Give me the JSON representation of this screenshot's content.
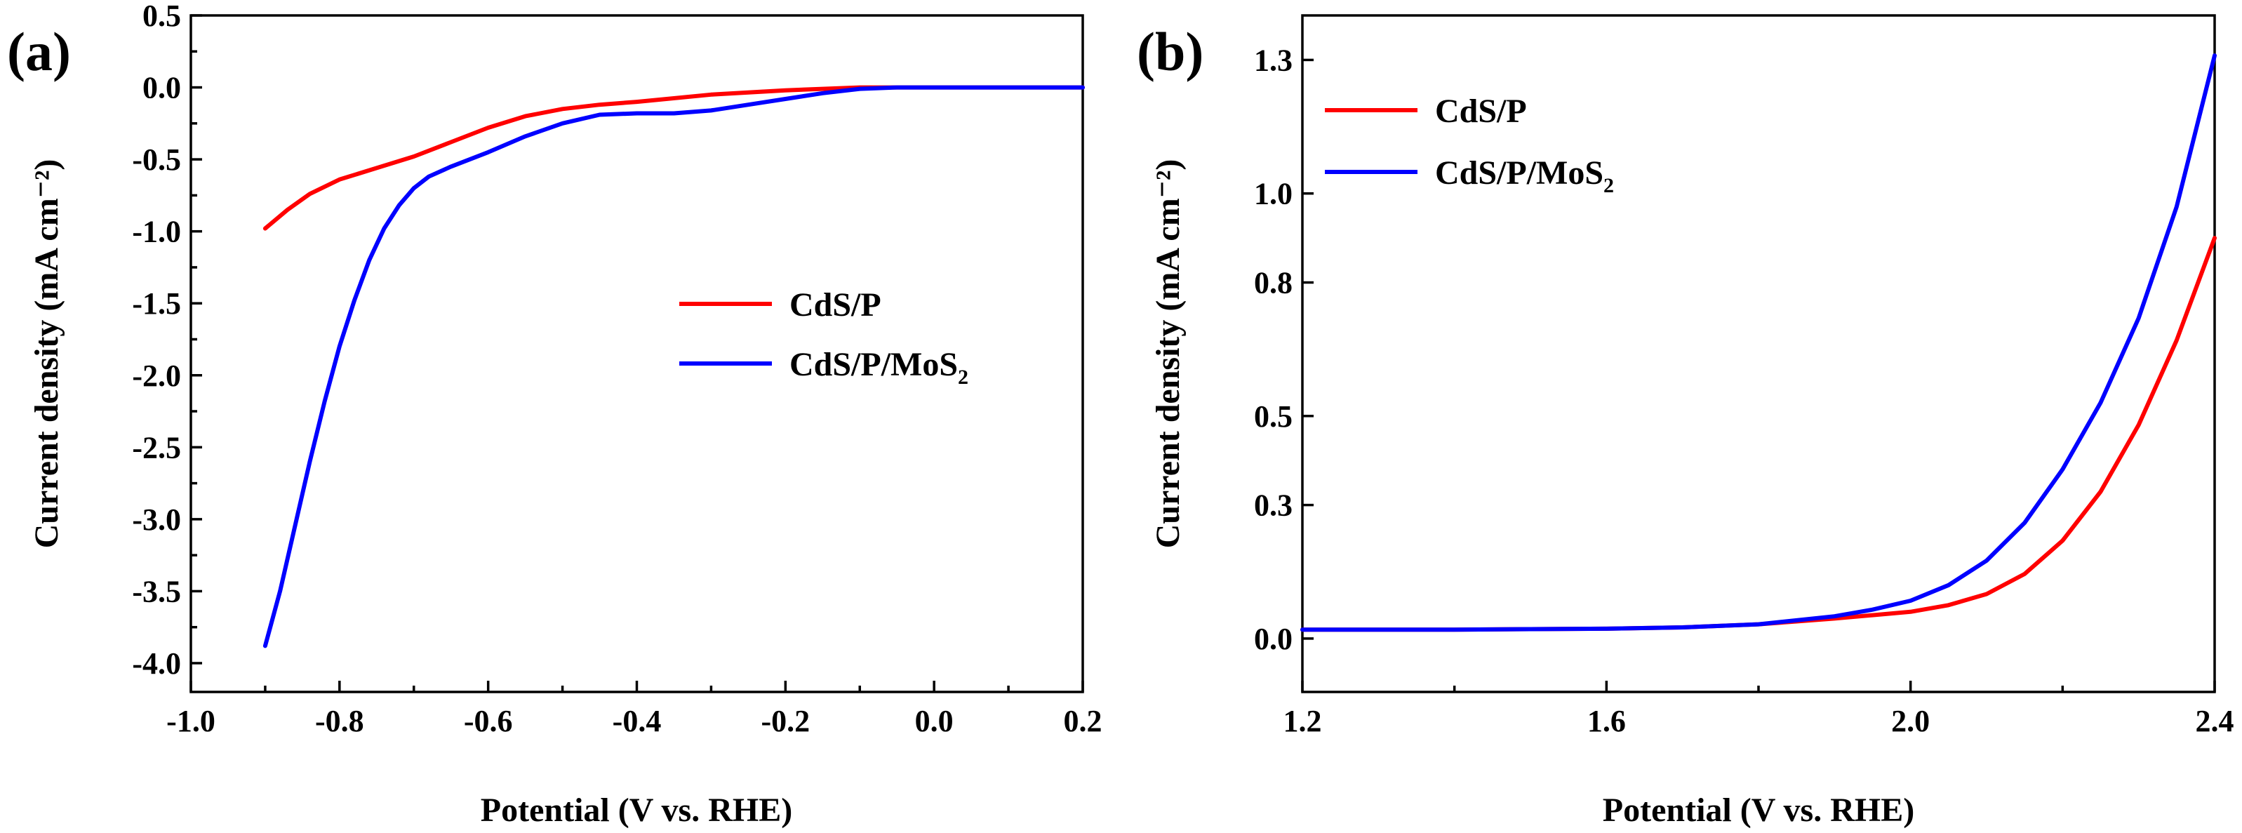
{
  "chart_data": [
    {
      "type": "line",
      "panel_label": "(a)",
      "xlabel": "Potential (V vs. RHE)",
      "ylabel": "Current density (mA cm⁻²)",
      "xlim": [
        -1.0,
        0.2
      ],
      "ylim": [
        -4.2,
        0.5
      ],
      "x_ticks": [
        -1.0,
        -0.8,
        -0.6,
        -0.4,
        -0.2,
        0.0,
        0.2
      ],
      "x_tick_labels": [
        "-1.0",
        "-0.8",
        "-0.6",
        "-0.4",
        "-0.2",
        "0.0",
        "0.2"
      ],
      "y_ticks": [
        0.5,
        0.0,
        -0.5,
        -1.0,
        -1.5,
        -2.0,
        -2.5,
        -3.0,
        -3.5,
        -4.0
      ],
      "y_tick_labels": [
        "0.5",
        "0.0",
        "-0.5",
        "-1.0",
        "-1.5",
        "-2.0",
        "-2.5",
        "-3.0",
        "-3.5",
        "-4.0"
      ],
      "legend_position": "center-right",
      "series": [
        {
          "name": "CdS/P",
          "legend_text": "CdS/P",
          "color": "#ff0000",
          "x": [
            -0.9,
            -0.87,
            -0.84,
            -0.8,
            -0.75,
            -0.7,
            -0.65,
            -0.6,
            -0.55,
            -0.5,
            -0.45,
            -0.4,
            -0.3,
            -0.2,
            -0.1,
            0.0,
            0.2
          ],
          "y": [
            -0.98,
            -0.85,
            -0.74,
            -0.64,
            -0.56,
            -0.48,
            -0.38,
            -0.28,
            -0.2,
            -0.15,
            -0.12,
            -0.1,
            -0.05,
            -0.02,
            0.0,
            0.0,
            0.0
          ]
        },
        {
          "name": "CdS/P/MoS2",
          "legend_text": "CdS/P/MoS",
          "legend_subscript": "2",
          "color": "#0000ff",
          "x": [
            -0.9,
            -0.88,
            -0.86,
            -0.84,
            -0.82,
            -0.8,
            -0.78,
            -0.76,
            -0.74,
            -0.72,
            -0.7,
            -0.68,
            -0.65,
            -0.6,
            -0.55,
            -0.5,
            -0.45,
            -0.4,
            -0.35,
            -0.3,
            -0.25,
            -0.2,
            -0.15,
            -0.1,
            -0.05,
            0.0,
            0.2
          ],
          "y": [
            -3.88,
            -3.5,
            -3.05,
            -2.6,
            -2.18,
            -1.8,
            -1.48,
            -1.2,
            -0.98,
            -0.82,
            -0.7,
            -0.62,
            -0.55,
            -0.45,
            -0.34,
            -0.25,
            -0.19,
            -0.18,
            -0.18,
            -0.16,
            -0.12,
            -0.08,
            -0.04,
            -0.01,
            0.0,
            0.0,
            0.0
          ]
        }
      ]
    },
    {
      "type": "line",
      "panel_label": "(b)",
      "xlabel": "Potential (V vs. RHE)",
      "ylabel": "Current density (mA cm⁻²)",
      "xlim": [
        1.2,
        2.4
      ],
      "ylim": [
        -0.12,
        1.4
      ],
      "x_ticks": [
        1.2,
        1.6,
        2.0,
        2.4
      ],
      "x_tick_labels": [
        "1.2",
        "1.6",
        "2.0",
        "2.4"
      ],
      "y_ticks": [
        0.0,
        0.3,
        0.5,
        0.8,
        1.0,
        1.3
      ],
      "y_tick_labels": [
        "0.0",
        "0.3",
        "0.5",
        "0.8",
        "1.0",
        "1.3"
      ],
      "legend_position": "top-left",
      "series": [
        {
          "name": "CdS/P",
          "legend_text": "CdS/P",
          "color": "#ff0000",
          "x": [
            1.2,
            1.4,
            1.6,
            1.7,
            1.8,
            1.9,
            2.0,
            2.05,
            2.1,
            2.15,
            2.2,
            2.25,
            2.3,
            2.35,
            2.4
          ],
          "y": [
            0.02,
            0.02,
            0.022,
            0.025,
            0.032,
            0.045,
            0.06,
            0.075,
            0.1,
            0.145,
            0.22,
            0.33,
            0.48,
            0.67,
            0.9
          ]
        },
        {
          "name": "CdS/P/MoS2",
          "legend_text": "CdS/P/MoS",
          "legend_subscript": "2",
          "color": "#0000ff",
          "x": [
            1.2,
            1.4,
            1.6,
            1.7,
            1.8,
            1.9,
            1.95,
            2.0,
            2.05,
            2.1,
            2.15,
            2.2,
            2.25,
            2.3,
            2.35,
            2.4
          ],
          "y": [
            0.02,
            0.02,
            0.022,
            0.025,
            0.032,
            0.05,
            0.065,
            0.085,
            0.12,
            0.175,
            0.26,
            0.38,
            0.53,
            0.72,
            0.97,
            1.31
          ]
        }
      ]
    }
  ]
}
